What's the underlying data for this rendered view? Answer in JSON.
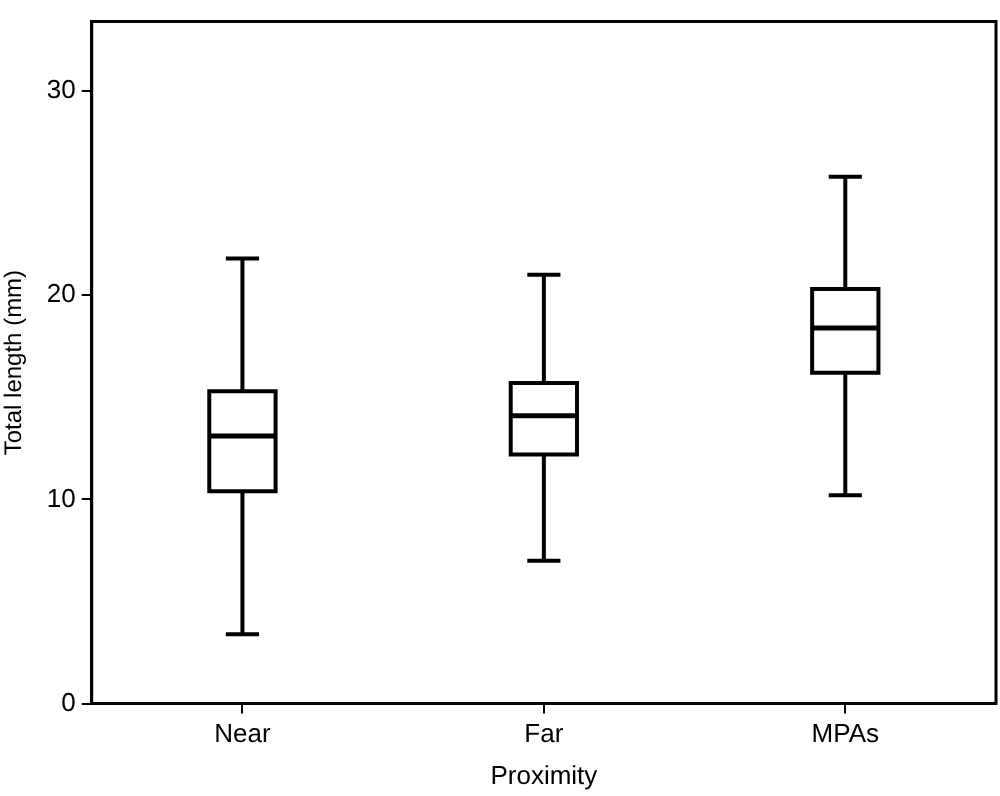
{
  "chart_data": {
    "type": "box",
    "xlabel": "Proximity",
    "ylabel": "Total length (mm)",
    "categories": [
      "Near",
      "Far",
      "MPAs"
    ],
    "boxes": [
      {
        "low": 3.4,
        "q1": 10.4,
        "median": 13.1,
        "q3": 15.3,
        "high": 21.8
      },
      {
        "low": 7.0,
        "q1": 12.2,
        "median": 14.1,
        "q3": 15.7,
        "high": 21.0
      },
      {
        "low": 10.2,
        "q1": 16.2,
        "median": 18.4,
        "q3": 20.3,
        "high": 25.8
      }
    ],
    "ylim": [
      0,
      33.4
    ],
    "yticks": [
      0,
      10,
      20,
      30
    ],
    "grid": false,
    "legend": false
  }
}
